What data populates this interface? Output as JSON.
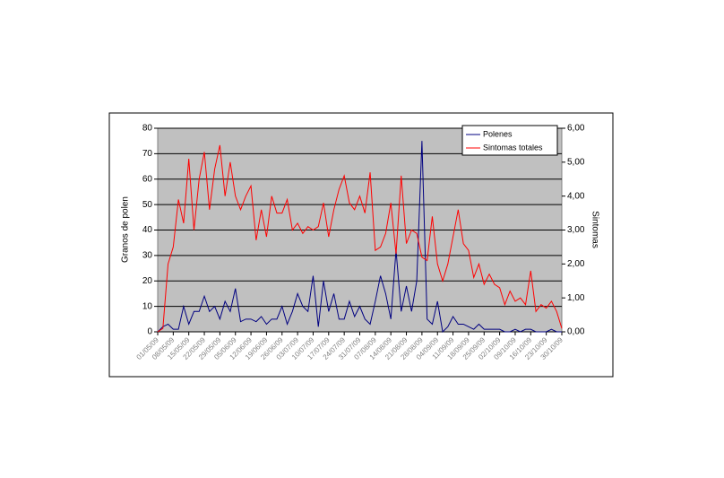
{
  "chart_data": {
    "type": "line",
    "y_label": "Granos de polen",
    "y2_label": "Sintomas",
    "categories": [
      "01/05/09",
      null,
      null,
      "08/05/09",
      null,
      null,
      "15/05/09",
      null,
      null,
      "22/05/09",
      null,
      null,
      "29/05/09",
      null,
      null,
      "05/06/09",
      null,
      null,
      "12/06/09",
      null,
      null,
      "19/06/09",
      null,
      null,
      "26/06/09",
      null,
      null,
      "03/07/09",
      null,
      null,
      "10/07/09",
      null,
      null,
      "17/07/09",
      null,
      null,
      "24/07/09",
      null,
      null,
      "31/07/09",
      null,
      null,
      "07/08/09",
      null,
      null,
      "14/08/09",
      null,
      null,
      "21/08/09",
      null,
      null,
      "28/08/09",
      null,
      null,
      "04/09/09",
      null,
      null,
      "11/09/09",
      null,
      null,
      "18/09/09",
      null,
      null,
      "25/09/09",
      null,
      null,
      "02/10/09",
      null,
      null,
      "09/10/09",
      null,
      null,
      "16/10/09",
      null,
      null,
      "23/10/09",
      null,
      null,
      "30/10/09"
    ],
    "series": [
      {
        "name": "Polenes",
        "color": "#000080",
        "values": [
          0,
          2,
          3,
          1,
          1,
          10,
          3,
          8,
          8,
          14,
          8,
          10,
          5,
          12,
          8,
          17,
          4,
          5,
          5,
          4,
          6,
          3,
          5,
          5,
          10,
          3,
          8,
          15,
          10,
          8,
          22,
          2,
          20,
          8,
          15,
          5,
          5,
          12,
          6,
          10,
          5,
          3,
          12,
          22,
          15,
          5,
          32,
          8,
          18,
          8,
          20,
          75,
          5,
          3,
          12,
          0,
          2,
          6,
          3,
          3,
          2,
          1,
          3,
          1,
          1,
          1,
          1,
          0,
          0,
          1,
          0,
          1,
          1,
          0,
          0,
          0,
          1,
          0,
          0
        ]
      },
      {
        "name": "Sintomas totales",
        "color": "#ff0000",
        "axis": "y2",
        "values": [
          0,
          0.1,
          2.0,
          2.5,
          3.9,
          3.2,
          5.1,
          3.0,
          4.5,
          5.3,
          3.6,
          4.8,
          5.5,
          4.0,
          5.0,
          4.0,
          3.6,
          4.0,
          4.3,
          2.7,
          3.6,
          2.8,
          4.0,
          3.5,
          3.5,
          3.9,
          3.0,
          3.2,
          2.9,
          3.1,
          3.0,
          3.1,
          3.8,
          2.8,
          3.6,
          4.2,
          4.6,
          3.8,
          3.6,
          4.0,
          3.5,
          4.7,
          2.4,
          2.5,
          2.9,
          3.8,
          2.3,
          4.6,
          2.6,
          3.0,
          2.9,
          2.2,
          2.1,
          3.4,
          2.0,
          1.5,
          2.0,
          2.8,
          3.6,
          2.6,
          2.4,
          1.6,
          2.0,
          1.4,
          1.7,
          1.4,
          1.3,
          0.8,
          1.2,
          0.9,
          1.0,
          0.8,
          1.8,
          0.6,
          0.8,
          0.7,
          0.9,
          0.6,
          0.1
        ]
      }
    ],
    "ylim": [
      0,
      80
    ],
    "yticks": [
      0,
      10,
      20,
      30,
      40,
      50,
      60,
      70,
      80
    ],
    "y2lim": [
      0,
      6
    ],
    "y2ticks": [
      {
        "value": 0,
        "label": "0,00"
      },
      {
        "value": 1,
        "label": "1,00"
      },
      {
        "value": 2,
        "label": "2,00"
      },
      {
        "value": 3,
        "label": "3,00"
      },
      {
        "value": 4,
        "label": "4,00"
      },
      {
        "value": 5,
        "label": "5,00"
      },
      {
        "value": 6,
        "label": "6,00"
      }
    ],
    "grid": true,
    "legend": "upper right"
  }
}
